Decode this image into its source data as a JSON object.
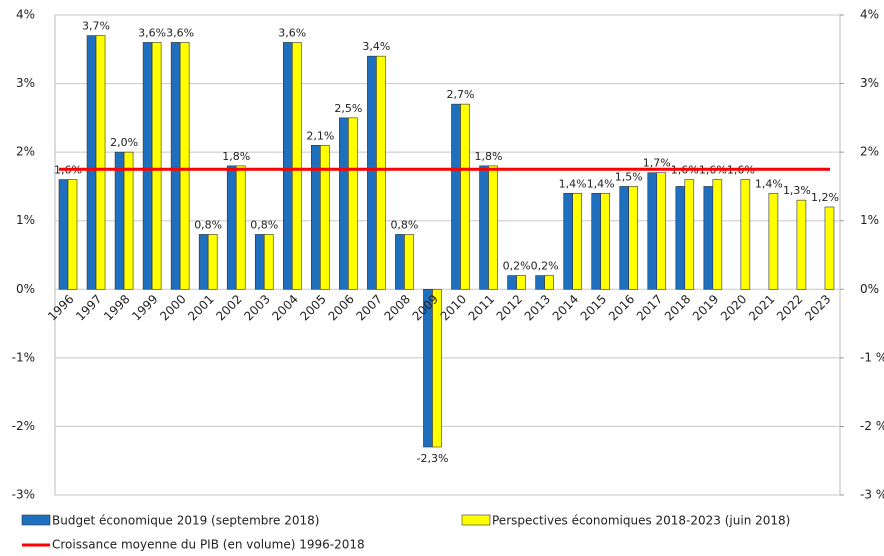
{
  "chart_data": {
    "type": "bar",
    "categories": [
      "1996",
      "1997",
      "1998",
      "1999",
      "2000",
      "2001",
      "2002",
      "2003",
      "2004",
      "2005",
      "2006",
      "2007",
      "2008",
      "2009",
      "2010",
      "2011",
      "2012",
      "2013",
      "2014",
      "2015",
      "2016",
      "2017",
      "2018",
      "2019",
      "2020",
      "2021",
      "2022",
      "2023"
    ],
    "series": [
      {
        "name": "Budget économique 2019 (septembre 2018)",
        "color": "#1f6fbf",
        "values": [
          1.6,
          3.7,
          2.0,
          3.6,
          3.6,
          0.8,
          1.8,
          0.8,
          3.6,
          2.1,
          2.5,
          3.4,
          0.8,
          -2.3,
          2.7,
          1.8,
          0.2,
          0.2,
          1.4,
          1.4,
          1.5,
          1.7,
          1.5,
          1.5,
          null,
          null,
          null,
          null
        ]
      },
      {
        "name": "Perspectives économiques 2018-2023 (juin 2018)",
        "color": "#ffff00",
        "values": [
          1.6,
          3.7,
          2.0,
          3.6,
          3.6,
          0.8,
          1.8,
          0.8,
          3.6,
          2.1,
          2.5,
          3.4,
          0.8,
          -2.3,
          2.7,
          1.8,
          0.2,
          0.2,
          1.4,
          1.4,
          1.5,
          1.7,
          1.6,
          1.6,
          1.6,
          1.4,
          1.3,
          1.2
        ],
        "value_labels": [
          "1,6%",
          "3,7%",
          "2,0%",
          "3,6%",
          "3,6%",
          "0,8%",
          "1,8%",
          "0,8%",
          "3,6%",
          "2,1%",
          "2,5%",
          "3,4%",
          "0,8%",
          "-2,3%",
          "2,7%",
          "1,8%",
          "0,2%",
          "0,2%",
          "1,4%",
          "1,4%",
          "1,5%",
          "1,7%",
          "1,6%",
          "1,6%",
          "1,6%",
          "1,4%",
          "1,3%",
          "1,2%"
        ]
      }
    ],
    "reference_line": {
      "name": "Croissance moyenne du PIB (en volume) 1996-2018",
      "color": "#ff0000",
      "value": 1.75
    },
    "ylim": [
      -3,
      4
    ],
    "yticks": [
      {
        "value": -3,
        "label": "-3%"
      },
      {
        "value": -2,
        "label": "-2%"
      },
      {
        "value": -1,
        "label": "-1%"
      },
      {
        "value": 0,
        "label": "0%"
      },
      {
        "value": 1,
        "label": "1%"
      },
      {
        "value": 2,
        "label": "2%"
      },
      {
        "value": 3,
        "label": "3%"
      },
      {
        "value": 4,
        "label": "4%"
      }
    ],
    "y2lim": [
      -3,
      4
    ],
    "y2ticks": [
      {
        "value": -3,
        "label": "-3 %"
      },
      {
        "value": -2,
        "label": "-2 %"
      },
      {
        "value": -1,
        "label": "-1 %"
      },
      {
        "value": 0,
        "label": "0%"
      },
      {
        "value": 1,
        "label": "1%"
      },
      {
        "value": 2,
        "label": "2%"
      },
      {
        "value": 3,
        "label": "3%"
      },
      {
        "value": 4,
        "label": "4%"
      }
    ],
    "grid": true
  }
}
